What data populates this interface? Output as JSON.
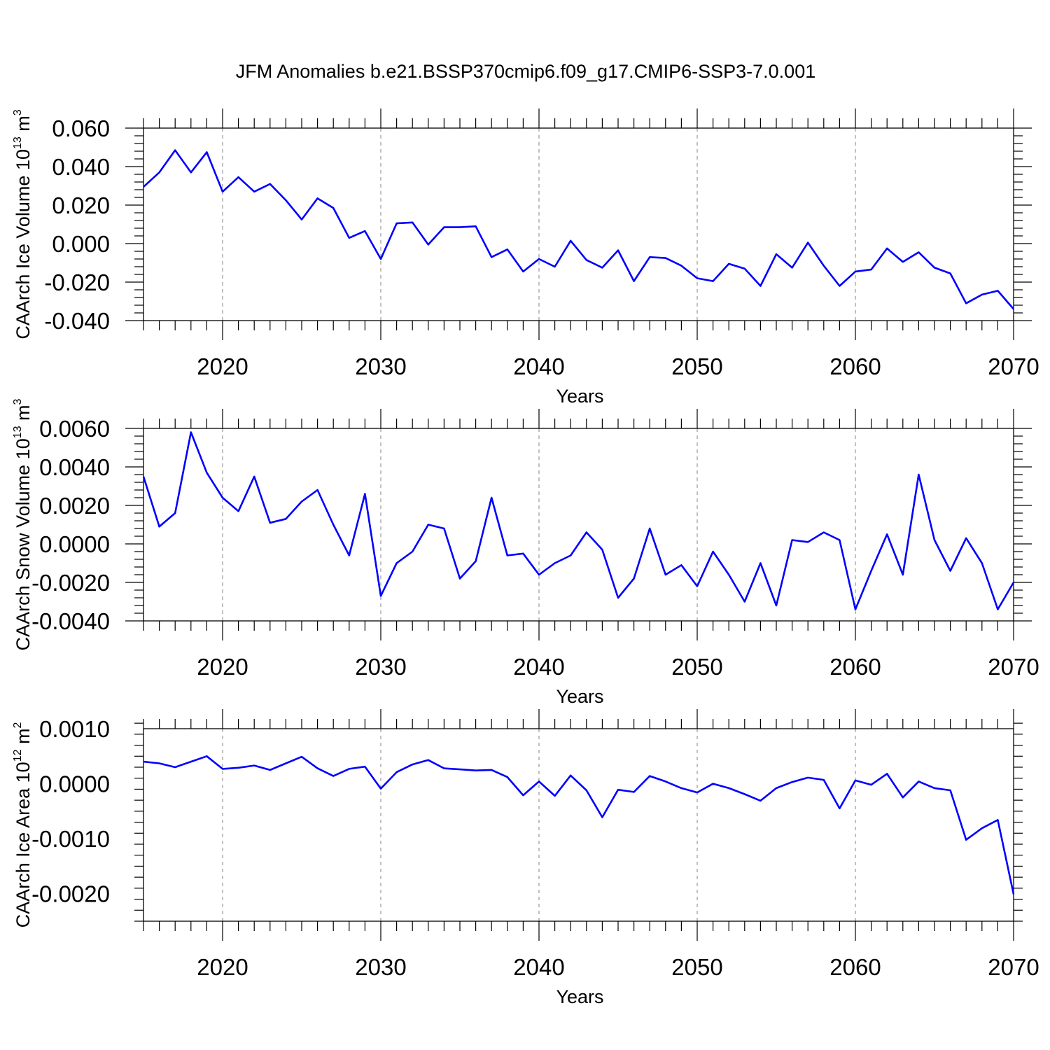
{
  "title": "JFM Anomalies b.e21.BSSP370cmip6.f09_g17.CMIP6-SSP3-7.0.001",
  "chart_data": [
    {
      "type": "line",
      "ylabel": {
        "text": "CAArch Ice Volume 10",
        "exp": "13",
        "unit": " m",
        "unit_exp": "3"
      },
      "xlabel": "Years",
      "xlim": [
        2015,
        2070
      ],
      "ylim": [
        -0.04,
        0.06
      ],
      "xticks": [
        2020,
        2030,
        2040,
        2050,
        2060,
        2070
      ],
      "xtick_labels": [
        "2020",
        "2030",
        "2040",
        "2050",
        "2060",
        "2070"
      ],
      "yticks": [
        -0.04,
        -0.02,
        0.0,
        0.02,
        0.04,
        0.06
      ],
      "ytick_labels": [
        "-0.040",
        "-0.020",
        "0.000",
        "0.020",
        "0.040",
        "0.060"
      ],
      "grid": "vertical dashed at major x ticks",
      "line_color": "#0000ff",
      "series": [
        {
          "x": [
            2015,
            2016,
            2017,
            2018,
            2019,
            2020,
            2021,
            2022,
            2023,
            2024,
            2025,
            2026,
            2027,
            2028,
            2029,
            2030,
            2031,
            2032,
            2033,
            2034,
            2035,
            2036,
            2037,
            2038,
            2039,
            2040,
            2041,
            2042,
            2043,
            2044,
            2045,
            2046,
            2047,
            2048,
            2049,
            2050,
            2051,
            2052,
            2053,
            2054,
            2055,
            2056,
            2057,
            2058,
            2059,
            2060,
            2061,
            2062,
            2063,
            2064,
            2065,
            2066,
            2067,
            2068,
            2069,
            2070
          ],
          "values": [
            0.0295,
            0.037,
            0.0485,
            0.037,
            0.0475,
            0.027,
            0.0345,
            0.027,
            0.031,
            0.0225,
            0.0125,
            0.0235,
            0.0185,
            0.003,
            0.0065,
            -0.008,
            0.0105,
            0.011,
            -0.0005,
            0.0085,
            0.0085,
            0.009,
            -0.007,
            -0.003,
            -0.0145,
            -0.008,
            -0.012,
            0.0015,
            -0.0085,
            -0.0125,
            -0.0035,
            -0.0195,
            -0.007,
            -0.0075,
            -0.0115,
            -0.018,
            -0.0195,
            -0.0105,
            -0.013,
            -0.022,
            -0.0055,
            -0.0125,
            0.0005,
            -0.0115,
            -0.022,
            -0.0145,
            -0.0135,
            -0.0025,
            -0.0095,
            -0.0045,
            -0.0125,
            -0.0155,
            -0.031,
            -0.0265,
            -0.0245,
            -0.034
          ]
        }
      ]
    },
    {
      "type": "line",
      "ylabel": {
        "text": "CAArch Snow Volume 10",
        "exp": "13",
        "unit": " m",
        "unit_exp": "3"
      },
      "xlabel": "Years",
      "xlim": [
        2015,
        2070
      ],
      "ylim": [
        -0.004,
        0.006
      ],
      "xticks": [
        2020,
        2030,
        2040,
        2050,
        2060,
        2070
      ],
      "xtick_labels": [
        "2020",
        "2030",
        "2040",
        "2050",
        "2060",
        "2070"
      ],
      "yticks": [
        -0.004,
        -0.002,
        0.0,
        0.002,
        0.004,
        0.006
      ],
      "ytick_labels": [
        "-0.0040",
        "-0.0020",
        "0.0000",
        "0.0020",
        "0.0040",
        "0.0060"
      ],
      "grid": "vertical dashed at major x ticks",
      "line_color": "#0000ff",
      "series": [
        {
          "x": [
            2015,
            2016,
            2017,
            2018,
            2019,
            2020,
            2021,
            2022,
            2023,
            2024,
            2025,
            2026,
            2027,
            2028,
            2029,
            2030,
            2031,
            2032,
            2033,
            2034,
            2035,
            2036,
            2037,
            2038,
            2039,
            2040,
            2041,
            2042,
            2043,
            2044,
            2045,
            2046,
            2047,
            2048,
            2049,
            2050,
            2051,
            2052,
            2053,
            2054,
            2055,
            2056,
            2057,
            2058,
            2059,
            2060,
            2061,
            2062,
            2063,
            2064,
            2065,
            2066,
            2067,
            2068,
            2069,
            2070
          ],
          "values": [
            0.0035,
            0.0009,
            0.0016,
            0.0058,
            0.0037,
            0.0024,
            0.0017,
            0.0035,
            0.0011,
            0.0013,
            0.0022,
            0.0028,
            0.001,
            -0.0006,
            0.0026,
            -0.0027,
            -0.001,
            -0.0004,
            0.001,
            0.0008,
            -0.0018,
            -0.0009,
            0.0024,
            -0.0006,
            -0.0005,
            -0.0016,
            -0.001,
            -0.0006,
            0.0006,
            -0.0003,
            -0.0028,
            -0.0018,
            0.0008,
            -0.0016,
            -0.0011,
            -0.0022,
            -0.0004,
            -0.0016,
            -0.003,
            -0.001,
            -0.0032,
            0.0002,
            0.0001,
            0.0006,
            0.0002,
            -0.0034,
            -0.0014,
            0.0005,
            -0.0016,
            0.0036,
            0.0002,
            -0.0014,
            0.0003,
            -0.001,
            -0.0034,
            -0.002
          ]
        }
      ]
    },
    {
      "type": "line",
      "ylabel": {
        "text": "CAArch Ice Area 10",
        "exp": "12",
        "unit": " m",
        "unit_exp": "2"
      },
      "xlabel": "Years",
      "xlim": [
        2015,
        2070
      ],
      "ylim": [
        -0.0025,
        0.001
      ],
      "xticks": [
        2020,
        2030,
        2040,
        2050,
        2060,
        2070
      ],
      "xtick_labels": [
        "2020",
        "2030",
        "2040",
        "2050",
        "2060",
        "2070"
      ],
      "yticks": [
        -0.002,
        -0.001,
        0.0,
        0.001
      ],
      "ytick_labels": [
        "-0.0020",
        "-0.0010",
        "0.0000",
        "0.0010"
      ],
      "grid": "vertical dashed at major x ticks",
      "line_color": "#0000ff",
      "series": [
        {
          "x": [
            2015,
            2016,
            2017,
            2018,
            2019,
            2020,
            2021,
            2022,
            2023,
            2024,
            2025,
            2026,
            2027,
            2028,
            2029,
            2030,
            2031,
            2032,
            2033,
            2034,
            2035,
            2036,
            2037,
            2038,
            2039,
            2040,
            2041,
            2042,
            2043,
            2044,
            2045,
            2046,
            2047,
            2048,
            2049,
            2050,
            2051,
            2052,
            2053,
            2054,
            2055,
            2056,
            2057,
            2058,
            2059,
            2060,
            2061,
            2062,
            2063,
            2064,
            2065,
            2066,
            2067,
            2068,
            2069,
            2070
          ],
          "values": [
            0.0004,
            0.00037,
            0.0003,
            0.0004,
            0.0005,
            0.00027,
            0.00029,
            0.00033,
            0.00025,
            0.00037,
            0.00049,
            0.00028,
            0.00014,
            0.00027,
            0.00031,
            -9e-05,
            0.00021,
            0.00035,
            0.00043,
            0.00028,
            0.00026,
            0.00024,
            0.00025,
            0.00012,
            -0.00021,
            4e-05,
            -0.00022,
            0.00015,
            -0.00012,
            -0.00061,
            -0.00011,
            -0.00015,
            0.00014,
            4e-05,
            -8e-05,
            -0.00016,
            0.0,
            -8e-05,
            -0.00019,
            -0.00031,
            -8e-05,
            3e-05,
            0.00011,
            7e-05,
            -0.00045,
            6e-05,
            -2e-05,
            0.00018,
            -0.00025,
            4e-05,
            -8e-05,
            -0.00012,
            -0.00102,
            -0.00081,
            -0.00066,
            -0.00201
          ]
        }
      ]
    }
  ]
}
